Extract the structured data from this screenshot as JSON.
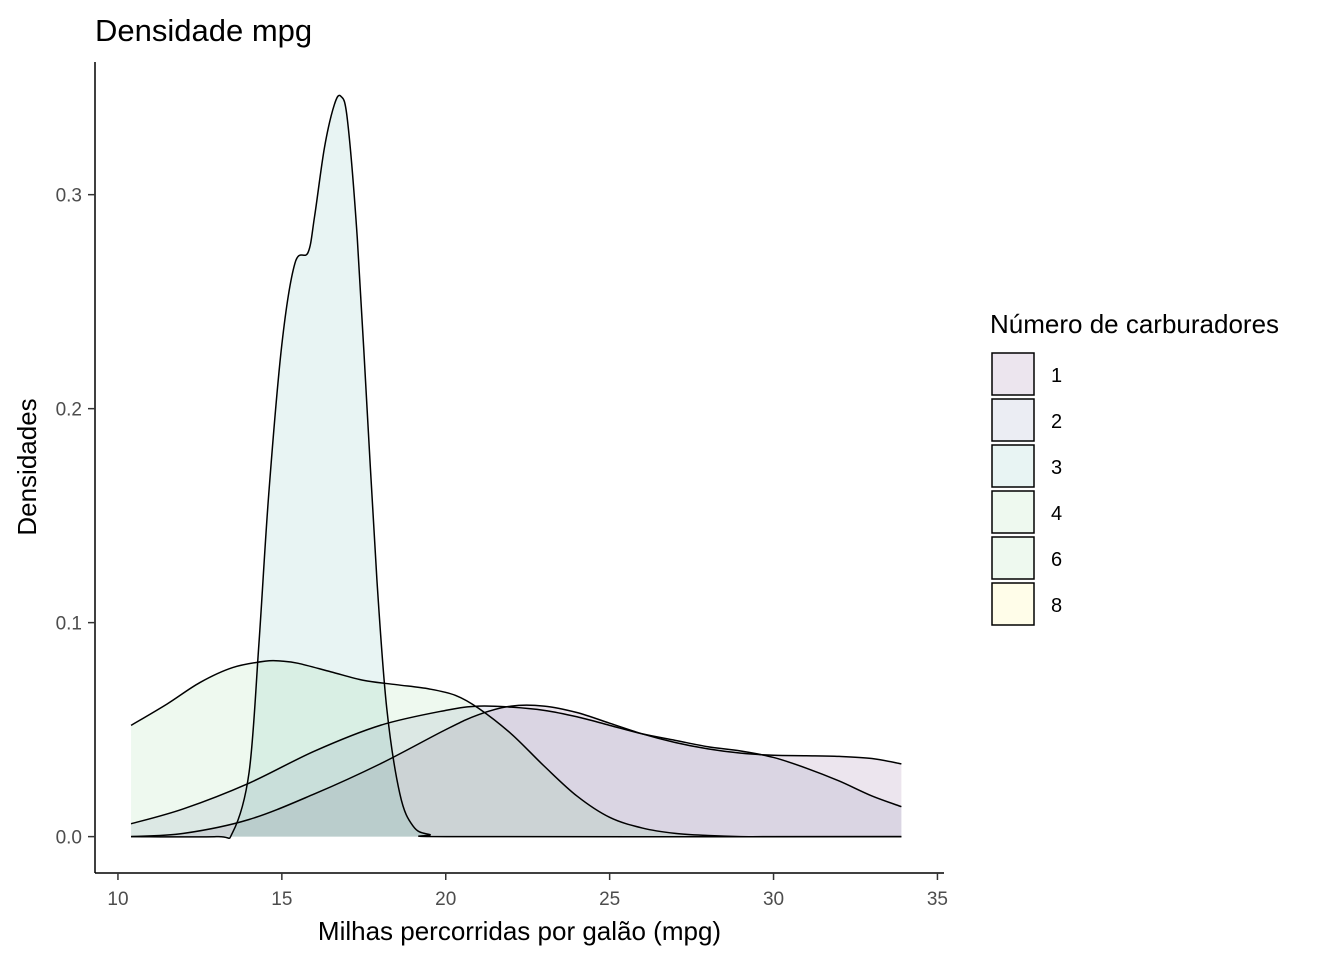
{
  "chart_data": {
    "type": "area",
    "title": "Densidade mpg",
    "xlabel": "Milhas percorridas por galão (mpg)",
    "ylabel": "Densidades",
    "xlim": [
      9.3,
      35.2
    ],
    "ylim": [
      -0.017,
      0.362
    ],
    "x_ticks": [
      10,
      15,
      20,
      25,
      30,
      35
    ],
    "y_ticks": [
      0.0,
      0.1,
      0.2,
      0.3
    ],
    "y_tick_labels": [
      "0.0",
      "0.1",
      "0.2",
      "0.3"
    ],
    "grid": false,
    "legend": {
      "title": "Número de carburadores",
      "position": "right",
      "entries": [
        "1",
        "2",
        "3",
        "4",
        "6",
        "8"
      ]
    },
    "series": [
      {
        "name": "1",
        "fill": "#440154",
        "x": [
          10.4,
          12,
          14,
          16,
          18,
          20,
          21,
          22,
          23,
          24,
          25,
          26,
          27,
          28,
          29,
          30,
          31,
          32,
          33,
          33.9
        ],
        "y": [
          0.0,
          0.0015,
          0.008,
          0.02,
          0.034,
          0.05,
          0.057,
          0.061,
          0.061,
          0.058,
          0.053,
          0.048,
          0.044,
          0.041,
          0.039,
          0.038,
          0.0378,
          0.0375,
          0.0365,
          0.034
        ]
      },
      {
        "name": "2",
        "fill": "#3b528b",
        "x": [
          10.4,
          12,
          14,
          16,
          18,
          20,
          21,
          22,
          23,
          24,
          25,
          26,
          27,
          28,
          29,
          30,
          31,
          32,
          33,
          33.9
        ],
        "y": [
          0.006,
          0.013,
          0.025,
          0.04,
          0.052,
          0.059,
          0.061,
          0.0605,
          0.059,
          0.056,
          0.052,
          0.048,
          0.045,
          0.042,
          0.04,
          0.037,
          0.032,
          0.026,
          0.019,
          0.014
        ]
      },
      {
        "name": "3",
        "fill": "#21908c",
        "x": [
          10.4,
          13.0,
          13.5,
          14.0,
          14.3,
          14.6,
          15.0,
          15.4,
          15.8,
          16.0,
          16.3,
          16.6,
          16.8,
          17.0,
          17.3,
          17.6,
          17.9,
          18.2,
          18.6,
          19.0,
          19.5,
          20.5,
          33.9
        ],
        "y": [
          0.0,
          0.0,
          0.002,
          0.03,
          0.09,
          0.16,
          0.23,
          0.268,
          0.273,
          0.29,
          0.322,
          0.342,
          0.346,
          0.335,
          0.28,
          0.2,
          0.12,
          0.06,
          0.02,
          0.005,
          0.001,
          0.0,
          0.0
        ]
      },
      {
        "name": "4",
        "fill": "#5dc863",
        "x": [
          10.4,
          11.5,
          12.5,
          13.5,
          14.5,
          15.0,
          15.5,
          16.5,
          17.5,
          18.5,
          19.5,
          20.3,
          21.0,
          22.0,
          23.0,
          24.0,
          25.0,
          26.0,
          27.0,
          28.0,
          29.0,
          30.0,
          31.0,
          32.0,
          33.0,
          33.9
        ],
        "y": [
          0.052,
          0.062,
          0.072,
          0.079,
          0.082,
          0.082,
          0.081,
          0.077,
          0.073,
          0.071,
          0.069,
          0.066,
          0.06,
          0.048,
          0.033,
          0.019,
          0.009,
          0.004,
          0.0015,
          0.0005,
          0.0,
          0.0,
          0.0,
          0.0,
          0.0,
          0.0
        ]
      }
    ]
  }
}
